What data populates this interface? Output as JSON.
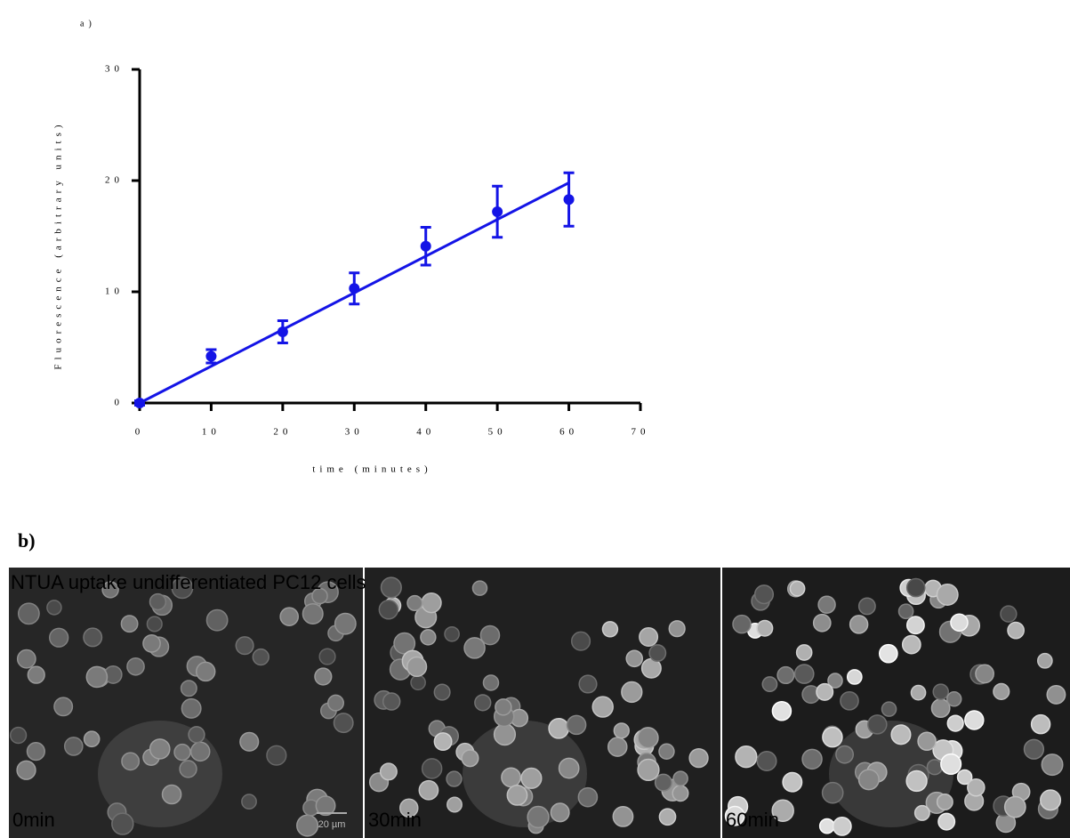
{
  "chart_data": {
    "type": "scatter",
    "x_label": "time (minutes)",
    "y_label": "Fluorescence (arbitrary units)",
    "x": [
      0,
      10,
      20,
      30,
      40,
      50,
      60
    ],
    "values": [
      0,
      4.2,
      6.4,
      10.3,
      14.1,
      17.2,
      18.3
    ],
    "errors": [
      0.2,
      0.6,
      1.0,
      1.4,
      1.7,
      2.3,
      2.4
    ],
    "fit": {
      "x": [
        0,
        60
      ],
      "values": [
        0,
        19.8
      ]
    },
    "color": "#1414e6",
    "xlim": [
      0,
      70
    ],
    "xticks": [
      0,
      10,
      20,
      30,
      40,
      50,
      60,
      70
    ],
    "ylim": [
      0,
      30
    ],
    "yticks": [
      0,
      10,
      20,
      30
    ]
  },
  "panel_a_label": "a)",
  "panel_b_label": "b)",
  "image_panel": {
    "title": "NTUA uptake undifferentiated PC12 cells",
    "frames": [
      {
        "label": "0min",
        "scale_bar": "20 µm"
      },
      {
        "label": "30min"
      },
      {
        "label": "60min"
      }
    ]
  }
}
